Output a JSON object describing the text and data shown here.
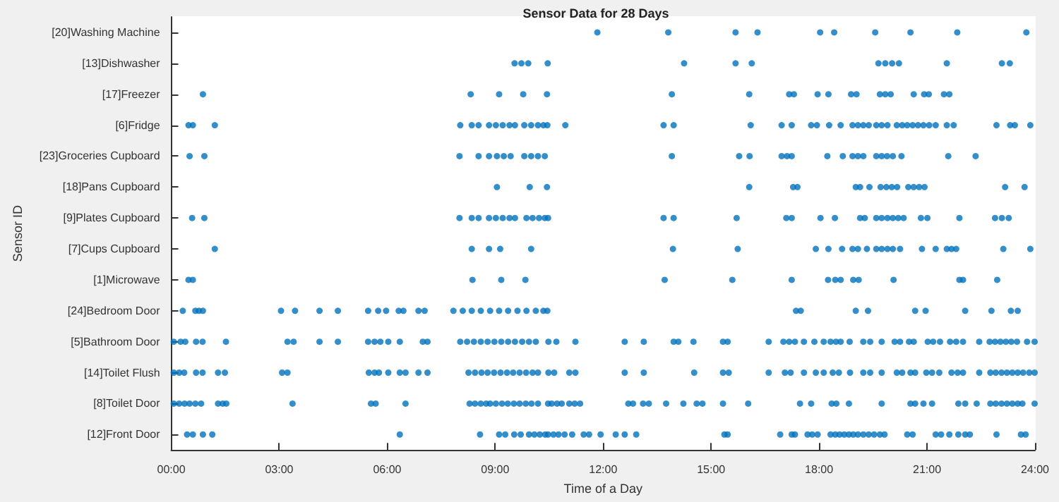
{
  "chart_data": {
    "type": "scatter",
    "title": "Sensor Data for 28 Days",
    "xlabel": "Time of a Day",
    "ylabel": "Sensor ID",
    "orientation": "horizontal",
    "categories": [
      "[20]Washing Machine",
      "[13]Dishwasher",
      "[17]Freezer",
      "[6]Fridge",
      "[23]Groceries Cupboard",
      "[18]Pans Cupboard",
      "[9]Plates Cupboard",
      "[7]Cups Cupboard",
      "[1]Microwave",
      "[24]Bedroom Door",
      "[5]Bathroom Door",
      "[14]Toilet Flush",
      "[8]Toilet Door",
      "[12]Front Door"
    ],
    "xlim": [
      0,
      24
    ],
    "xticks": [
      {
        "value": 0,
        "label": "00:00"
      },
      {
        "value": 3,
        "label": "03:00"
      },
      {
        "value": 6,
        "label": "06:00"
      },
      {
        "value": 9,
        "label": "09:00"
      },
      {
        "value": 12,
        "label": "12:00"
      },
      {
        "value": 15,
        "label": "15:00"
      },
      {
        "value": 18,
        "label": "18:00"
      },
      {
        "value": 21,
        "label": "21:00"
      },
      {
        "value": 24,
        "label": "24:00"
      }
    ],
    "marker": "circle",
    "series": [
      {
        "color": "#0072bd",
        "values": [
          11.84,
          13.81,
          15.68,
          16.29,
          18.03,
          18.42,
          19.56,
          20.54,
          21.84,
          23.76
        ],
        "x": [
          "[20]Washing Machine",
          "[20]Washing Machine",
          "[20]Washing Machine",
          "[20]Washing Machine",
          "[20]Washing Machine",
          "[20]Washing Machine",
          "[20]Washing Machine",
          "[20]Washing Machine",
          "[20]Washing Machine",
          "[20]Washing Machine"
        ]
      },
      {
        "color": "#0072bd",
        "values": [
          9.54,
          9.73,
          9.92,
          10.46,
          14.25,
          15.68,
          16.13,
          19.65,
          19.84,
          20.03,
          20.22,
          21.55,
          23.08,
          23.3
        ],
        "x": [
          "[13]Dishwasher",
          "[13]Dishwasher",
          "[13]Dishwasher",
          "[13]Dishwasher",
          "[13]Dishwasher",
          "[13]Dishwasher",
          "[13]Dishwasher",
          "[13]Dishwasher",
          "[13]Dishwasher",
          "[13]Dishwasher",
          "[13]Dishwasher",
          "[13]Dishwasher",
          "[13]Dishwasher",
          "[13]Dishwasher"
        ]
      },
      {
        "color": "#0072bd",
        "values": [
          0.88,
          8.32,
          9.11,
          9.78,
          10.44,
          13.91,
          16.06,
          17.17,
          17.3,
          17.96,
          18.26,
          18.89,
          19.04,
          19.69,
          19.84,
          19.99,
          20.63,
          20.92,
          21.05,
          21.47,
          21.62
        ],
        "x": [
          "[17]Freezer",
          "[17]Freezer",
          "[17]Freezer",
          "[17]Freezer",
          "[17]Freezer",
          "[17]Freezer",
          "[17]Freezer",
          "[17]Freezer",
          "[17]Freezer",
          "[17]Freezer",
          "[17]Freezer",
          "[17]Freezer",
          "[17]Freezer",
          "[17]Freezer",
          "[17]Freezer",
          "[17]Freezer",
          "[17]Freezer",
          "[17]Freezer",
          "[17]Freezer",
          "[17]Freezer",
          "[17]Freezer"
        ]
      },
      {
        "color": "#0072bd",
        "values": [
          0.48,
          0.6,
          1.21,
          8.03,
          8.35,
          8.54,
          8.83,
          9.02,
          9.21,
          9.4,
          9.55,
          9.81,
          10.0,
          10.19,
          10.34,
          10.45,
          10.95,
          13.68,
          13.96,
          16.1,
          16.96,
          17.24,
          17.78,
          17.94,
          18.28,
          18.6,
          18.93,
          19.08,
          19.23,
          19.38,
          19.59,
          19.74,
          19.9,
          20.16,
          20.31,
          20.45,
          20.6,
          20.75,
          20.9,
          21.06,
          21.24,
          21.55,
          21.74,
          22.93,
          23.31,
          23.44,
          23.87
        ],
        "x": [
          "[6]Fridge",
          "[6]Fridge",
          "[6]Fridge",
          "[6]Fridge",
          "[6]Fridge",
          "[6]Fridge",
          "[6]Fridge",
          "[6]Fridge",
          "[6]Fridge",
          "[6]Fridge",
          "[6]Fridge",
          "[6]Fridge",
          "[6]Fridge",
          "[6]Fridge",
          "[6]Fridge",
          "[6]Fridge",
          "[6]Fridge",
          "[6]Fridge",
          "[6]Fridge",
          "[6]Fridge",
          "[6]Fridge",
          "[6]Fridge",
          "[6]Fridge",
          "[6]Fridge",
          "[6]Fridge",
          "[6]Fridge",
          "[6]Fridge",
          "[6]Fridge",
          "[6]Fridge",
          "[6]Fridge",
          "[6]Fridge",
          "[6]Fridge",
          "[6]Fridge",
          "[6]Fridge",
          "[6]Fridge",
          "[6]Fridge",
          "[6]Fridge",
          "[6]Fridge",
          "[6]Fridge",
          "[6]Fridge",
          "[6]Fridge",
          "[6]Fridge",
          "[6]Fridge",
          "[6]Fridge",
          "[6]Fridge",
          "[6]Fridge",
          "[6]Fridge"
        ]
      },
      {
        "color": "#0072bd",
        "values": [
          0.51,
          0.92,
          8.01,
          8.54,
          8.83,
          9.05,
          9.24,
          9.43,
          9.81,
          10.0,
          10.19,
          10.38,
          13.91,
          15.78,
          16.07,
          16.96,
          17.11,
          17.24,
          18.23,
          18.66,
          18.93,
          19.08,
          19.23,
          19.59,
          19.74,
          19.89,
          20.05,
          20.29,
          21.59,
          22.35
        ],
        "x": [
          "[23]Groceries Cupboard",
          "[23]Groceries Cupboard",
          "[23]Groceries Cupboard",
          "[23]Groceries Cupboard",
          "[23]Groceries Cupboard",
          "[23]Groceries Cupboard",
          "[23]Groceries Cupboard",
          "[23]Groceries Cupboard",
          "[23]Groceries Cupboard",
          "[23]Groceries Cupboard",
          "[23]Groceries Cupboard",
          "[23]Groceries Cupboard",
          "[23]Groceries Cupboard",
          "[23]Groceries Cupboard",
          "[23]Groceries Cupboard",
          "[23]Groceries Cupboard",
          "[23]Groceries Cupboard",
          "[23]Groceries Cupboard",
          "[23]Groceries Cupboard",
          "[23]Groceries Cupboard",
          "[23]Groceries Cupboard",
          "[23]Groceries Cupboard",
          "[23]Groceries Cupboard",
          "[23]Groceries Cupboard",
          "[23]Groceries Cupboard",
          "[23]Groceries Cupboard",
          "[23]Groceries Cupboard",
          "[23]Groceries Cupboard",
          "[23]Groceries Cupboard",
          "[23]Groceries Cupboard"
        ]
      },
      {
        "color": "#0072bd",
        "values": [
          9.05,
          9.96,
          10.44,
          16.06,
          17.28,
          17.4,
          19.02,
          19.14,
          19.4,
          19.71,
          19.87,
          20.02,
          20.17,
          20.48,
          20.63,
          20.78,
          20.93,
          23.17,
          23.71
        ],
        "x": [
          "[18]Pans Cupboard",
          "[18]Pans Cupboard",
          "[18]Pans Cupboard",
          "[18]Pans Cupboard",
          "[18]Pans Cupboard",
          "[18]Pans Cupboard",
          "[18]Pans Cupboard",
          "[18]Pans Cupboard",
          "[18]Pans Cupboard",
          "[18]Pans Cupboard",
          "[18]Pans Cupboard",
          "[18]Pans Cupboard",
          "[18]Pans Cupboard",
          "[18]Pans Cupboard",
          "[18]Pans Cupboard",
          "[18]Pans Cupboard",
          "[18]Pans Cupboard",
          "[18]Pans Cupboard",
          "[18]Pans Cupboard"
        ]
      },
      {
        "color": "#0072bd",
        "values": [
          0.58,
          0.92,
          8.01,
          8.35,
          8.54,
          8.83,
          9.02,
          9.21,
          9.4,
          9.55,
          9.87,
          10.04,
          10.22,
          10.38,
          10.47,
          13.68,
          13.96,
          15.71,
          17.09,
          17.24,
          18.04,
          18.44,
          19.14,
          19.27,
          19.59,
          19.74,
          19.9,
          20.05,
          20.2,
          20.35,
          20.83,
          21.01,
          21.9,
          22.89,
          23.08,
          23.27
        ],
        "x": [
          "[9]Plates Cupboard",
          "[9]Plates Cupboard",
          "[9]Plates Cupboard",
          "[9]Plates Cupboard",
          "[9]Plates Cupboard",
          "[9]Plates Cupboard",
          "[9]Plates Cupboard",
          "[9]Plates Cupboard",
          "[9]Plates Cupboard",
          "[9]Plates Cupboard",
          "[9]Plates Cupboard",
          "[9]Plates Cupboard",
          "[9]Plates Cupboard",
          "[9]Plates Cupboard",
          "[9]Plates Cupboard",
          "[9]Plates Cupboard",
          "[9]Plates Cupboard",
          "[9]Plates Cupboard",
          "[9]Plates Cupboard",
          "[9]Plates Cupboard",
          "[9]Plates Cupboard",
          "[9]Plates Cupboard",
          "[9]Plates Cupboard",
          "[9]Plates Cupboard",
          "[9]Plates Cupboard",
          "[9]Plates Cupboard",
          "[9]Plates Cupboard",
          "[9]Plates Cupboard",
          "[9]Plates Cupboard",
          "[9]Plates Cupboard",
          "[9]Plates Cupboard",
          "[9]Plates Cupboard",
          "[9]Plates Cupboard",
          "[9]Plates Cupboard",
          "[9]Plates Cupboard",
          "[9]Plates Cupboard"
        ]
      },
      {
        "color": "#0072bd",
        "values": [
          1.21,
          8.35,
          8.83,
          9.14,
          10.0,
          13.94,
          15.74,
          17.91,
          18.26,
          18.64,
          18.93,
          19.08,
          19.33,
          19.59,
          19.74,
          19.9,
          20.05,
          20.25,
          20.86,
          21.24,
          21.55,
          21.68,
          21.81,
          23.12,
          23.87
        ],
        "x": [
          "[7]Cups Cupboard",
          "[7]Cups Cupboard",
          "[7]Cups Cupboard",
          "[7]Cups Cupboard",
          "[7]Cups Cupboard",
          "[7]Cups Cupboard",
          "[7]Cups Cupboard",
          "[7]Cups Cupboard",
          "[7]Cups Cupboard",
          "[7]Cups Cupboard",
          "[7]Cups Cupboard",
          "[7]Cups Cupboard",
          "[7]Cups Cupboard",
          "[7]Cups Cupboard",
          "[7]Cups Cupboard",
          "[7]Cups Cupboard",
          "[7]Cups Cupboard",
          "[7]Cups Cupboard",
          "[7]Cups Cupboard",
          "[7]Cups Cupboard",
          "[7]Cups Cupboard",
          "[7]Cups Cupboard",
          "[7]Cups Cupboard",
          "[7]Cups Cupboard",
          "[7]Cups Cupboard"
        ]
      },
      {
        "color": "#0072bd",
        "values": [
          0.48,
          0.6,
          8.37,
          9.17,
          9.84,
          13.71,
          15.59,
          17.24,
          18.25,
          18.45,
          18.6,
          18.95,
          19.1,
          20.07,
          21.9,
          22.0,
          22.95
        ],
        "x": [
          "[1]Microwave",
          "[1]Microwave",
          "[1]Microwave",
          "[1]Microwave",
          "[1]Microwave",
          "[1]Microwave",
          "[1]Microwave",
          "[1]Microwave",
          "[1]Microwave",
          "[1]Microwave",
          "[1]Microwave",
          "[1]Microwave",
          "[1]Microwave",
          "[1]Microwave",
          "[1]Microwave",
          "[1]Microwave",
          "[1]Microwave"
        ]
      },
      {
        "color": "#0072bd",
        "values": [
          0.32,
          0.67,
          0.77,
          0.88,
          3.05,
          3.44,
          4.12,
          4.63,
          5.47,
          5.75,
          5.97,
          6.32,
          6.45,
          6.87,
          7.04,
          7.84,
          8.1,
          8.35,
          8.6,
          8.86,
          9.11,
          9.36,
          9.62,
          9.87,
          10.13,
          10.34,
          10.45,
          17.36,
          17.49,
          19.02,
          19.36,
          20.67,
          20.96,
          22.06,
          22.79,
          23.33,
          23.52
        ],
        "x": [
          "[24]Bedroom Door",
          "[24]Bedroom Door",
          "[24]Bedroom Door",
          "[24]Bedroom Door",
          "[24]Bedroom Door",
          "[24]Bedroom Door",
          "[24]Bedroom Door",
          "[24]Bedroom Door",
          "[24]Bedroom Door",
          "[24]Bedroom Door",
          "[24]Bedroom Door",
          "[24]Bedroom Door",
          "[24]Bedroom Door",
          "[24]Bedroom Door",
          "[24]Bedroom Door",
          "[24]Bedroom Door",
          "[24]Bedroom Door",
          "[24]Bedroom Door",
          "[24]Bedroom Door",
          "[24]Bedroom Door",
          "[24]Bedroom Door",
          "[24]Bedroom Door",
          "[24]Bedroom Door",
          "[24]Bedroom Door",
          "[24]Bedroom Door",
          "[24]Bedroom Door",
          "[24]Bedroom Door",
          "[24]Bedroom Door",
          "[24]Bedroom Door",
          "[24]Bedroom Door",
          "[24]Bedroom Door",
          "[24]Bedroom Door",
          "[24]Bedroom Door",
          "[24]Bedroom Door",
          "[24]Bedroom Door",
          "[24]Bedroom Door",
          "[24]Bedroom Door"
        ]
      },
      {
        "color": "#0072bd",
        "values": [
          0.07,
          0.26,
          0.39,
          0.69,
          0.87,
          1.52,
          3.23,
          3.4,
          4.12,
          4.63,
          5.47,
          5.65,
          5.81,
          6.03,
          6.35,
          6.99,
          7.12,
          8.03,
          8.22,
          8.41,
          8.6,
          8.79,
          8.98,
          9.17,
          9.36,
          9.55,
          9.75,
          9.94,
          10.13,
          10.48,
          10.7,
          11.23,
          12.6,
          13.13,
          13.96,
          14.09,
          14.51,
          15.33,
          15.46,
          16.6,
          17.01,
          17.17,
          17.33,
          17.58,
          17.87,
          18.13,
          18.32,
          18.47,
          18.6,
          18.85,
          19.23,
          19.42,
          19.74,
          20.1,
          20.25,
          20.5,
          20.63,
          21.02,
          21.17,
          21.36,
          21.64,
          21.81,
          22.0,
          22.45,
          22.74,
          22.89,
          23.04,
          23.19,
          23.34,
          23.5,
          23.78,
          23.99
        ],
        "x": [
          "[5]Bathroom Door",
          "[5]Bathroom Door",
          "[5]Bathroom Door",
          "[5]Bathroom Door",
          "[5]Bathroom Door",
          "[5]Bathroom Door",
          "[5]Bathroom Door",
          "[5]Bathroom Door",
          "[5]Bathroom Door",
          "[5]Bathroom Door",
          "[5]Bathroom Door",
          "[5]Bathroom Door",
          "[5]Bathroom Door",
          "[5]Bathroom Door",
          "[5]Bathroom Door",
          "[5]Bathroom Door",
          "[5]Bathroom Door",
          "[5]Bathroom Door",
          "[5]Bathroom Door",
          "[5]Bathroom Door",
          "[5]Bathroom Door",
          "[5]Bathroom Door",
          "[5]Bathroom Door",
          "[5]Bathroom Door",
          "[5]Bathroom Door",
          "[5]Bathroom Door",
          "[5]Bathroom Door",
          "[5]Bathroom Door",
          "[5]Bathroom Door",
          "[5]Bathroom Door",
          "[5]Bathroom Door",
          "[5]Bathroom Door",
          "[5]Bathroom Door",
          "[5]Bathroom Door",
          "[5]Bathroom Door",
          "[5]Bathroom Door",
          "[5]Bathroom Door",
          "[5]Bathroom Door",
          "[5]Bathroom Door",
          "[5]Bathroom Door",
          "[5]Bathroom Door",
          "[5]Bathroom Door",
          "[5]Bathroom Door",
          "[5]Bathroom Door",
          "[5]Bathroom Door",
          "[5]Bathroom Door",
          "[5]Bathroom Door",
          "[5]Bathroom Door",
          "[5]Bathroom Door",
          "[5]Bathroom Door",
          "[5]Bathroom Door",
          "[5]Bathroom Door",
          "[5]Bathroom Door",
          "[5]Bathroom Door",
          "[5]Bathroom Door",
          "[5]Bathroom Door",
          "[5]Bathroom Door",
          "[5]Bathroom Door",
          "[5]Bathroom Door",
          "[5]Bathroom Door",
          "[5]Bathroom Door",
          "[5]Bathroom Door",
          "[5]Bathroom Door",
          "[5]Bathroom Door",
          "[5]Bathroom Door",
          "[5]Bathroom Door",
          "[5]Bathroom Door",
          "[5]Bathroom Door",
          "[5]Bathroom Door",
          "[5]Bathroom Door",
          "[5]Bathroom Door",
          "[5]Bathroom Door"
        ]
      },
      {
        "color": "#0072bd",
        "values": [
          0.07,
          0.22,
          0.36,
          0.69,
          0.87,
          1.3,
          1.49,
          3.08,
          3.23,
          5.49,
          5.65,
          5.77,
          6.03,
          6.35,
          6.51,
          6.87,
          7.12,
          8.26,
          8.44,
          8.62,
          8.79,
          8.97,
          9.15,
          9.33,
          9.5,
          9.68,
          9.86,
          10.04,
          10.19,
          10.48,
          10.64,
          11.06,
          11.23,
          12.6,
          13.13,
          14.53,
          15.33,
          15.49,
          16.6,
          17.05,
          17.21,
          17.58,
          17.91,
          18.13,
          18.38,
          18.55,
          18.86,
          19.23,
          19.42,
          19.74,
          20.16,
          20.31,
          20.54,
          20.67,
          20.98,
          21.14,
          21.34,
          21.68,
          21.85,
          22.0,
          22.45,
          22.76,
          22.91,
          23.07,
          23.22,
          23.37,
          23.52,
          23.67,
          23.84,
          23.99
        ],
        "x": [
          "[14]Toilet Flush",
          "[14]Toilet Flush",
          "[14]Toilet Flush",
          "[14]Toilet Flush",
          "[14]Toilet Flush",
          "[14]Toilet Flush",
          "[14]Toilet Flush",
          "[14]Toilet Flush",
          "[14]Toilet Flush",
          "[14]Toilet Flush",
          "[14]Toilet Flush",
          "[14]Toilet Flush",
          "[14]Toilet Flush",
          "[14]Toilet Flush",
          "[14]Toilet Flush",
          "[14]Toilet Flush",
          "[14]Toilet Flush",
          "[14]Toilet Flush",
          "[14]Toilet Flush",
          "[14]Toilet Flush",
          "[14]Toilet Flush",
          "[14]Toilet Flush",
          "[14]Toilet Flush",
          "[14]Toilet Flush",
          "[14]Toilet Flush",
          "[14]Toilet Flush",
          "[14]Toilet Flush",
          "[14]Toilet Flush",
          "[14]Toilet Flush",
          "[14]Toilet Flush",
          "[14]Toilet Flush",
          "[14]Toilet Flush",
          "[14]Toilet Flush",
          "[14]Toilet Flush",
          "[14]Toilet Flush",
          "[14]Toilet Flush",
          "[14]Toilet Flush",
          "[14]Toilet Flush",
          "[14]Toilet Flush",
          "[14]Toilet Flush",
          "[14]Toilet Flush",
          "[14]Toilet Flush",
          "[14]Toilet Flush",
          "[14]Toilet Flush",
          "[14]Toilet Flush",
          "[14]Toilet Flush",
          "[14]Toilet Flush",
          "[14]Toilet Flush",
          "[14]Toilet Flush",
          "[14]Toilet Flush",
          "[14]Toilet Flush",
          "[14]Toilet Flush",
          "[14]Toilet Flush",
          "[14]Toilet Flush",
          "[14]Toilet Flush",
          "[14]Toilet Flush",
          "[14]Toilet Flush",
          "[14]Toilet Flush",
          "[14]Toilet Flush",
          "[14]Toilet Flush",
          "[14]Toilet Flush",
          "[14]Toilet Flush",
          "[14]Toilet Flush",
          "[14]Toilet Flush",
          "[14]Toilet Flush",
          "[14]Toilet Flush",
          "[14]Toilet Flush",
          "[14]Toilet Flush",
          "[14]Toilet Flush",
          "[14]Toilet Flush"
        ]
      },
      {
        "color": "#0072bd",
        "values": [
          0.07,
          0.22,
          0.37,
          0.51,
          0.67,
          0.83,
          1.3,
          1.43,
          1.53,
          3.37,
          5.55,
          5.68,
          6.51,
          8.29,
          8.44,
          8.6,
          8.75,
          8.86,
          9.02,
          9.19,
          9.35,
          9.52,
          9.68,
          9.85,
          10.01,
          10.19,
          10.47,
          10.57,
          10.72,
          10.85,
          11.06,
          11.21,
          11.36,
          12.7,
          12.83,
          13.11,
          13.27,
          13.75,
          14.23,
          14.6,
          14.76,
          15.33,
          16.03,
          17.47,
          17.78,
          18.35,
          18.48,
          18.83,
          19.74,
          20.54,
          20.67,
          20.9,
          21.14,
          21.87,
          22.06,
          22.38,
          22.76,
          22.91,
          23.07,
          23.22,
          23.37,
          23.52,
          23.65,
          23.99
        ],
        "x": [
          "[8]Toilet Door",
          "[8]Toilet Door",
          "[8]Toilet Door",
          "[8]Toilet Door",
          "[8]Toilet Door",
          "[8]Toilet Door",
          "[8]Toilet Door",
          "[8]Toilet Door",
          "[8]Toilet Door",
          "[8]Toilet Door",
          "[8]Toilet Door",
          "[8]Toilet Door",
          "[8]Toilet Door",
          "[8]Toilet Door",
          "[8]Toilet Door",
          "[8]Toilet Door",
          "[8]Toilet Door",
          "[8]Toilet Door",
          "[8]Toilet Door",
          "[8]Toilet Door",
          "[8]Toilet Door",
          "[8]Toilet Door",
          "[8]Toilet Door",
          "[8]Toilet Door",
          "[8]Toilet Door",
          "[8]Toilet Door",
          "[8]Toilet Door",
          "[8]Toilet Door",
          "[8]Toilet Door",
          "[8]Toilet Door",
          "[8]Toilet Door",
          "[8]Toilet Door",
          "[8]Toilet Door",
          "[8]Toilet Door",
          "[8]Toilet Door",
          "[8]Toilet Door",
          "[8]Toilet Door",
          "[8]Toilet Door",
          "[8]Toilet Door",
          "[8]Toilet Door",
          "[8]Toilet Door",
          "[8]Toilet Door",
          "[8]Toilet Door",
          "[8]Toilet Door",
          "[8]Toilet Door",
          "[8]Toilet Door",
          "[8]Toilet Door",
          "[8]Toilet Door",
          "[8]Toilet Door",
          "[8]Toilet Door",
          "[8]Toilet Door",
          "[8]Toilet Door",
          "[8]Toilet Door",
          "[8]Toilet Door",
          "[8]Toilet Door",
          "[8]Toilet Door",
          "[8]Toilet Door",
          "[8]Toilet Door",
          "[8]Toilet Door",
          "[8]Toilet Door",
          "[8]Toilet Door",
          "[8]Toilet Door",
          "[8]Toilet Door",
          "[8]Toilet Door"
        ]
      },
      {
        "color": "#0072bd",
        "values": [
          0.44,
          0.6,
          0.88,
          1.14,
          6.35,
          8.58,
          9.11,
          9.28,
          9.53,
          9.71,
          9.94,
          10.09,
          10.24,
          10.39,
          10.47,
          10.62,
          10.76,
          10.93,
          11.14,
          11.46,
          11.61,
          11.93,
          12.35,
          12.6,
          12.92,
          15.37,
          15.46,
          16.92,
          17.24,
          17.33,
          17.68,
          17.81,
          17.96,
          18.32,
          18.45,
          18.57,
          18.7,
          18.83,
          18.95,
          19.08,
          19.23,
          19.38,
          19.53,
          19.69,
          19.82,
          20.45,
          20.6,
          21.24,
          21.39,
          21.62,
          21.87,
          22.06,
          22.19,
          22.93,
          23.61,
          23.74
        ],
        "x": [
          "[12]Front Door",
          "[12]Front Door",
          "[12]Front Door",
          "[12]Front Door",
          "[12]Front Door",
          "[12]Front Door",
          "[12]Front Door",
          "[12]Front Door",
          "[12]Front Door",
          "[12]Front Door",
          "[12]Front Door",
          "[12]Front Door",
          "[12]Front Door",
          "[12]Front Door",
          "[12]Front Door",
          "[12]Front Door",
          "[12]Front Door",
          "[12]Front Door",
          "[12]Front Door",
          "[12]Front Door",
          "[12]Front Door",
          "[12]Front Door",
          "[12]Front Door",
          "[12]Front Door",
          "[12]Front Door",
          "[12]Front Door",
          "[12]Front Door",
          "[12]Front Door",
          "[12]Front Door",
          "[12]Front Door",
          "[12]Front Door",
          "[12]Front Door",
          "[12]Front Door",
          "[12]Front Door",
          "[12]Front Door",
          "[12]Front Door",
          "[12]Front Door",
          "[12]Front Door",
          "[12]Front Door",
          "[12]Front Door",
          "[12]Front Door",
          "[12]Front Door",
          "[12]Front Door",
          "[12]Front Door",
          "[12]Front Door",
          "[12]Front Door",
          "[12]Front Door",
          "[12]Front Door",
          "[12]Front Door",
          "[12]Front Door",
          "[12]Front Door",
          "[12]Front Door",
          "[12]Front Door",
          "[12]Front Door",
          "[12]Front Door",
          "[12]Front Door"
        ]
      }
    ]
  }
}
